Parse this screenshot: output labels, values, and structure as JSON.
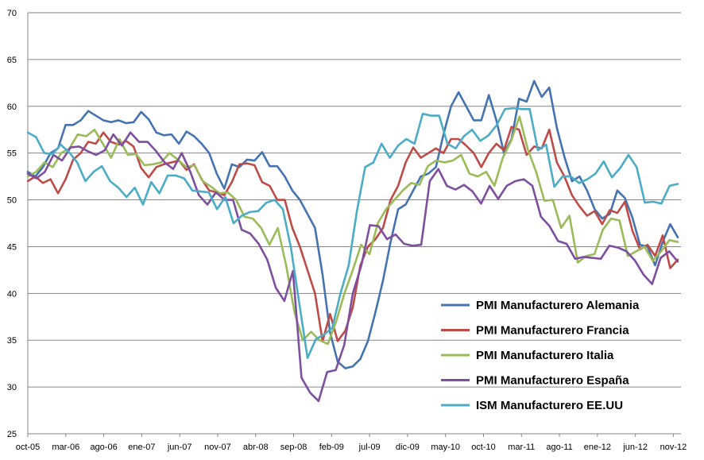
{
  "chart_data": {
    "type": "line",
    "title": "",
    "xlabel": "",
    "ylabel": "",
    "ylim": [
      25,
      70
    ],
    "yticks": [
      25,
      30,
      35,
      40,
      45,
      50,
      55,
      60,
      65,
      70
    ],
    "ytick_labels": [
      "25",
      "30",
      "35",
      "40",
      "45",
      "50",
      "55",
      "60",
      "65",
      "70"
    ],
    "grid": true,
    "legend_position": "bottom-right",
    "x_tick_labels": [
      "oct-05",
      "mar-06",
      "ago-06",
      "ene-07",
      "jun-07",
      "nov-07",
      "abr-08",
      "sep-08",
      "feb-09",
      "jul-09",
      "dic-09",
      "may-10",
      "oct-10",
      "mar-11",
      "ago-11",
      "ene-12",
      "jun-12",
      "nov-12"
    ],
    "x_start": "oct-05",
    "x_end": "nov-12",
    "series": [
      {
        "name": "PMI Manufacturero Alemania",
        "color": "#4573B2",
        "values": [
          53.0,
          52.5,
          53.5,
          55.0,
          55.5,
          58.0,
          58.0,
          58.5,
          59.5,
          59.0,
          58.5,
          58.3,
          58.5,
          58.2,
          58.3,
          59.4,
          58.6,
          57.2,
          56.9,
          57.0,
          56.0,
          57.3,
          56.8,
          56.0,
          55.0,
          52.8,
          51.2,
          53.8,
          53.5,
          54.3,
          54.2,
          55.1,
          53.6,
          53.6,
          52.5,
          51.0,
          50.0,
          48.5,
          47.0,
          42.0,
          35.8,
          32.7,
          32.0,
          32.2,
          33.0,
          34.9,
          38.0,
          41.4,
          45.5,
          49.0,
          49.5,
          51.0,
          52.5,
          52.8,
          53.5,
          57.0,
          60.0,
          61.5,
          60.0,
          58.5,
          58.5,
          61.2,
          58.5,
          55.0,
          56.5,
          60.8,
          60.5,
          62.7,
          61.0,
          62.0,
          57.7,
          54.6,
          52.0,
          52.5,
          51.0,
          49.0,
          48.0,
          48.5,
          51.0,
          50.2,
          48.1,
          45.2,
          45.0,
          43.0,
          45.5,
          47.4,
          46.0
        ]
      },
      {
        "name": "PMI Manufacturero Francia",
        "color": "#BE4B48",
        "values": [
          52.0,
          52.5,
          51.8,
          52.2,
          50.7,
          52.2,
          54.3,
          55.0,
          56.2,
          56.0,
          57.2,
          56.2,
          55.9,
          56.3,
          55.7,
          53.4,
          52.4,
          53.5,
          53.8,
          54.0,
          54.2,
          53.2,
          53.8,
          52.2,
          51.0,
          50.8,
          50.5,
          51.9,
          53.8,
          53.9,
          53.7,
          51.9,
          51.5,
          50.0,
          50.0,
          47.0,
          45.0,
          42.5,
          40.0,
          34.9,
          37.8,
          34.9,
          36.0,
          38.5,
          43.0,
          45.0,
          45.8,
          47.0,
          50.0,
          51.5,
          54.0,
          55.6,
          54.5,
          55.0,
          55.5,
          55.0,
          56.5,
          56.5,
          55.8,
          55.0,
          53.5,
          55.0,
          56.0,
          55.3,
          57.8,
          57.5,
          54.8,
          55.7,
          55.5,
          57.5,
          54.0,
          52.5,
          50.5,
          49.3,
          48.3,
          48.8,
          47.4,
          48.9,
          48.6,
          49.8,
          46.7,
          44.7,
          45.2,
          44.0,
          46.2,
          42.7,
          43.6
        ]
      },
      {
        "name": "PMI Manufacturero Italia",
        "color": "#9BBB59",
        "values": [
          52.5,
          53.0,
          54.0,
          53.5,
          55.0,
          55.5,
          57.0,
          56.8,
          57.5,
          56.0,
          54.5,
          56.5,
          54.8,
          54.9,
          53.7,
          53.8,
          54.0,
          55.0,
          54.3,
          53.5,
          53.7,
          52.0,
          51.4,
          50.7,
          50.8,
          50.0,
          48.2,
          48.0,
          47.0,
          45.2,
          47.0,
          43.0,
          38.0,
          35.0,
          35.9,
          35.0,
          34.6,
          37.0,
          40.0,
          42.5,
          45.2,
          44.2,
          47.5,
          49.0,
          50.0,
          51.0,
          51.8,
          51.6,
          53.6,
          54.2,
          54.0,
          54.2,
          54.8,
          52.8,
          52.5,
          53.0,
          51.5,
          54.5,
          56.3,
          58.9,
          55.4,
          53.0,
          49.9,
          50.0,
          47.0,
          48.3,
          43.3,
          44.0,
          44.2,
          46.8,
          48.0,
          47.8,
          44.0,
          44.5,
          45.0,
          43.5,
          44.5,
          45.7,
          45.5
        ]
      },
      {
        "name": "PMI Manufacturero España",
        "color": "#7E4F9E",
        "values": [
          52.8,
          52.3,
          53.0,
          54.8,
          54.2,
          55.6,
          55.7,
          55.2,
          54.8,
          55.3,
          57.0,
          55.8,
          57.2,
          56.2,
          56.2,
          55.2,
          54.0,
          53.3,
          55.0,
          53.0,
          50.5,
          49.5,
          50.8,
          50.0,
          50.0,
          46.8,
          46.4,
          45.3,
          43.6,
          40.6,
          39.2,
          42.4,
          31.0,
          29.4,
          28.5,
          31.6,
          31.8,
          34.5,
          40.0,
          43.0,
          47.3,
          47.2,
          45.8,
          46.3,
          45.3,
          45.1,
          45.2,
          52.0,
          53.3,
          51.5,
          51.1,
          51.6,
          50.9,
          49.6,
          51.5,
          50.1,
          51.5,
          52.0,
          52.2,
          51.5,
          48.2,
          47.2,
          45.6,
          45.3,
          43.7,
          43.9,
          43.8,
          43.7,
          45.1,
          44.9,
          44.5,
          43.5,
          42.0,
          41.0,
          43.8,
          44.5,
          43.4
        ]
      },
      {
        "name": "ISM Manufacturero EE.UU",
        "color": "#4BACC6",
        "values": [
          57.2,
          56.7,
          55.0,
          54.9,
          55.9,
          55.1,
          54.0,
          52.0,
          53.0,
          53.6,
          52.0,
          51.3,
          50.3,
          51.3,
          49.5,
          51.9,
          50.7,
          52.6,
          52.6,
          52.3,
          51.0,
          50.9,
          50.8,
          49.0,
          50.3,
          47.5,
          48.3,
          48.7,
          48.8,
          49.7,
          50.0,
          49.0,
          44.8,
          38.9,
          33.1,
          35.1,
          35.6,
          36.3,
          40.0,
          43.0,
          48.8,
          53.5,
          54.0,
          56.0,
          54.5,
          55.8,
          56.5,
          56.0,
          59.2,
          59.0,
          59.0,
          56.0,
          55.5,
          56.8,
          57.5,
          56.3,
          56.9,
          58.0,
          59.7,
          59.8,
          59.7,
          59.7,
          55.3,
          55.9,
          51.4,
          52.5,
          52.5,
          51.8,
          52.2,
          52.8,
          54.1,
          52.4,
          53.4,
          54.8,
          53.5,
          49.7,
          49.8,
          49.6,
          51.5,
          51.7
        ]
      }
    ]
  }
}
